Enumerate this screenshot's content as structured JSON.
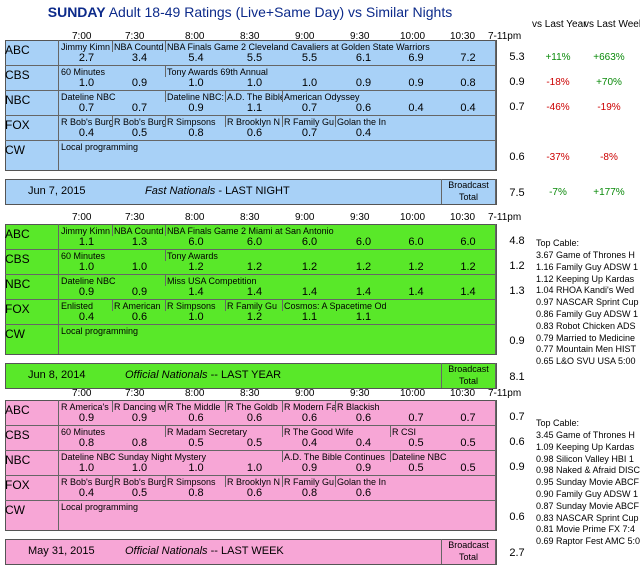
{
  "title_bold": "SUNDAY",
  "title_rest": " Adult 18-49 Ratings (Live+Same Day) vs Similar Nights",
  "header_vs_year": "vs Last Year",
  "header_vs_week": "vs Last Week",
  "times": [
    "7:00",
    "7:30",
    "8:00",
    "8:30",
    "9:00",
    "9:30",
    "10:00",
    "10:30",
    "7-11pm"
  ],
  "colors": {
    "panel1": "#a8d1f7",
    "panel2": "#59e829",
    "panel3": "#f7a6d6",
    "title": "#0c2a8a",
    "positive": "#0a8a0a",
    "negative": "#cc0000"
  },
  "panel1": {
    "networks": [
      "ABC",
      "CBS",
      "NBC",
      "FOX",
      "CW"
    ],
    "rows": [
      {
        "shows": [
          "Jimmy Kimn",
          "NBA Countd",
          "NBA Finals Game 2 Cleveland Cavaliers at Golden State Warriors"
        ],
        "vals": [
          "2.7",
          "3.4",
          "5.4",
          "5.5",
          "5.5",
          "6.1",
          "6.9",
          "7.2"
        ],
        "total": "5.3",
        "yr": "+11%",
        "wk": "+663%"
      },
      {
        "shows": [
          "60 Minutes",
          "",
          "Tony Awards 69th Annual"
        ],
        "vals": [
          "1.0",
          "0.9",
          "1.0",
          "1.0",
          "1.0",
          "0.9",
          "0.9",
          "0.8"
        ],
        "total": "0.9",
        "yr": "-18%",
        "wk": "+70%"
      },
      {
        "shows": [
          "Dateline NBC",
          "",
          "Dateline NBC: My Kid Wo",
          "A.D. The Bible Continues",
          "American Odyssey"
        ],
        "vals": [
          "0.7",
          "0.7",
          "0.9",
          "1.1",
          "0.7",
          "0.6",
          "0.4",
          "0.4"
        ],
        "total": "0.7",
        "yr": "-46%",
        "wk": "-19%"
      },
      {
        "shows": [
          "R Bob's Burg",
          "R Bob's Burg",
          "R Simpsons",
          "R Brooklyn N",
          "R Family Gu",
          "Golan the In"
        ],
        "vals": [
          "0.4",
          "0.5",
          "0.8",
          "0.6",
          "0.7",
          "0.4",
          "",
          ""
        ],
        "total": "",
        "yr": "",
        "wk": ""
      },
      {
        "shows": [
          "Local programming"
        ],
        "vals": [
          "",
          "",
          "",
          "",
          "",
          "",
          "",
          ""
        ],
        "total": "0.6",
        "yr": "-37%",
        "wk": "-8%"
      }
    ],
    "date": "Jun 7, 2015",
    "label_italic": "Fast Nationals",
    "label_rest": " - LAST NIGHT",
    "bcast": "Broadcast",
    "bcast_total": "Total",
    "grand": "7.5",
    "grand_yr": "-7%",
    "grand_wk": "+177%"
  },
  "panel2": {
    "networks": [
      "ABC",
      "CBS",
      "NBC",
      "FOX",
      "CW"
    ],
    "rows": [
      {
        "shows": [
          "Jimmy Kimn",
          "NBA Countd",
          "NBA Finals Game 2 Miami at San Antonio"
        ],
        "vals": [
          "1.1",
          "1.3",
          "6.0",
          "6.0",
          "6.0",
          "6.0",
          "6.0",
          "6.0"
        ],
        "total": "4.8"
      },
      {
        "shows": [
          "60 Minutes",
          "",
          "Tony Awards"
        ],
        "vals": [
          "1.0",
          "1.0",
          "1.2",
          "1.2",
          "1.2",
          "1.2",
          "1.2",
          "1.2"
        ],
        "total": "1.2"
      },
      {
        "shows": [
          "Dateline NBC",
          "",
          "Miss USA Competition"
        ],
        "vals": [
          "0.9",
          "0.9",
          "1.4",
          "1.4",
          "1.4",
          "1.4",
          "1.4",
          "1.4"
        ],
        "total": "1.3"
      },
      {
        "shows": [
          "Enlisted",
          "R American",
          "R Simpsons",
          "R Family Gu",
          "Cosmos: A Spacetime Od"
        ],
        "vals": [
          "0.4",
          "0.6",
          "1.0",
          "1.2",
          "1.1",
          "1.1",
          "",
          ""
        ],
        "total": ""
      },
      {
        "shows": [
          "Local programming"
        ],
        "vals": [
          "",
          "",
          "",
          "",
          "",
          "",
          "",
          ""
        ],
        "total": "0.9"
      }
    ],
    "date": "Jun 8, 2014",
    "label_italic": "Official Nationals",
    "label_rest": " -- LAST YEAR",
    "bcast": "Broadcast",
    "bcast_total": "Total",
    "grand": "8.1"
  },
  "panel3": {
    "networks": [
      "ABC",
      "CBS",
      "NBC",
      "FOX",
      "CW"
    ],
    "rows": [
      {
        "shows": [
          "R America's Funniest Ho",
          "R Dancing with the Stars",
          "R The Middle",
          "R The Goldb",
          "R Modern Fa",
          "R Blackish"
        ],
        "vals": [
          "0.9",
          "0.9",
          "0.6",
          "0.6",
          "0.6",
          "0.6",
          "0.7",
          "0.7"
        ],
        "total": "0.7"
      },
      {
        "shows": [
          "60 Minutes",
          "",
          "R Madam Secretary",
          "",
          "R The Good Wife",
          "",
          "R CSI"
        ],
        "vals": [
          "0.8",
          "0.8",
          "0.5",
          "0.5",
          "0.4",
          "0.4",
          "0.5",
          "0.5"
        ],
        "total": "0.6"
      },
      {
        "shows": [
          "Dateline NBC Sunday Night Mystery",
          "",
          "",
          "",
          "A.D. The Bible Continues",
          "",
          "Dateline NBC"
        ],
        "vals": [
          "1.0",
          "1.0",
          "1.0",
          "1.0",
          "0.9",
          "0.9",
          "0.5",
          "0.5"
        ],
        "total": "0.9"
      },
      {
        "shows": [
          "R Bob's Burg",
          "R Bob's Burg",
          "R Simpsons",
          "R Brooklyn N",
          "R Family Gu",
          "Golan the In"
        ],
        "vals": [
          "0.4",
          "0.5",
          "0.8",
          "0.6",
          "0.8",
          "0.6",
          "",
          ""
        ],
        "total": ""
      },
      {
        "shows": [
          "Local programming"
        ],
        "vals": [
          "",
          "",
          "",
          "",
          "",
          "",
          "",
          ""
        ],
        "total": "0.6"
      }
    ],
    "date": "May 31, 2015",
    "label_italic": "Official Nationals",
    "label_rest": " -- LAST WEEK",
    "bcast": "Broadcast",
    "bcast_total": "Total",
    "grand": "2.7"
  },
  "cable1": {
    "header": "Top Cable:",
    "items": [
      "3.67 Game of Thrones H",
      "1.16 Family Guy ADSW 1",
      "1.12 Keeping Up Kardas",
      "1.04 RHOA Kandi's Wed",
      "0.97 NASCAR Sprint Cup",
      "0.86 Family Guy ADSW 1",
      "0.83 Robot Chicken ADS",
      "0.79 Married to Medicine",
      "0.77 Mountain Men HIST",
      "0.65 L&O SVU USA 5:00"
    ]
  },
  "cable2": {
    "header": "Top Cable:",
    "items": [
      "3.45 Game of Thrones H",
      "1.09 Keeping Up Kardas",
      "0.98 Silicon Valley HBI 1",
      "0.98 Naked & Afraid DISC",
      "0.95 Sunday Movie ABCF",
      "0.90 Family Guy ADSW 1",
      "0.87 Sunday Movie ABCF",
      "0.83 NASCAR Sprint Cup",
      "0.81 Movie Prime FX 7:4",
      "0.69 Raptor Fest AMC 5:0"
    ]
  }
}
